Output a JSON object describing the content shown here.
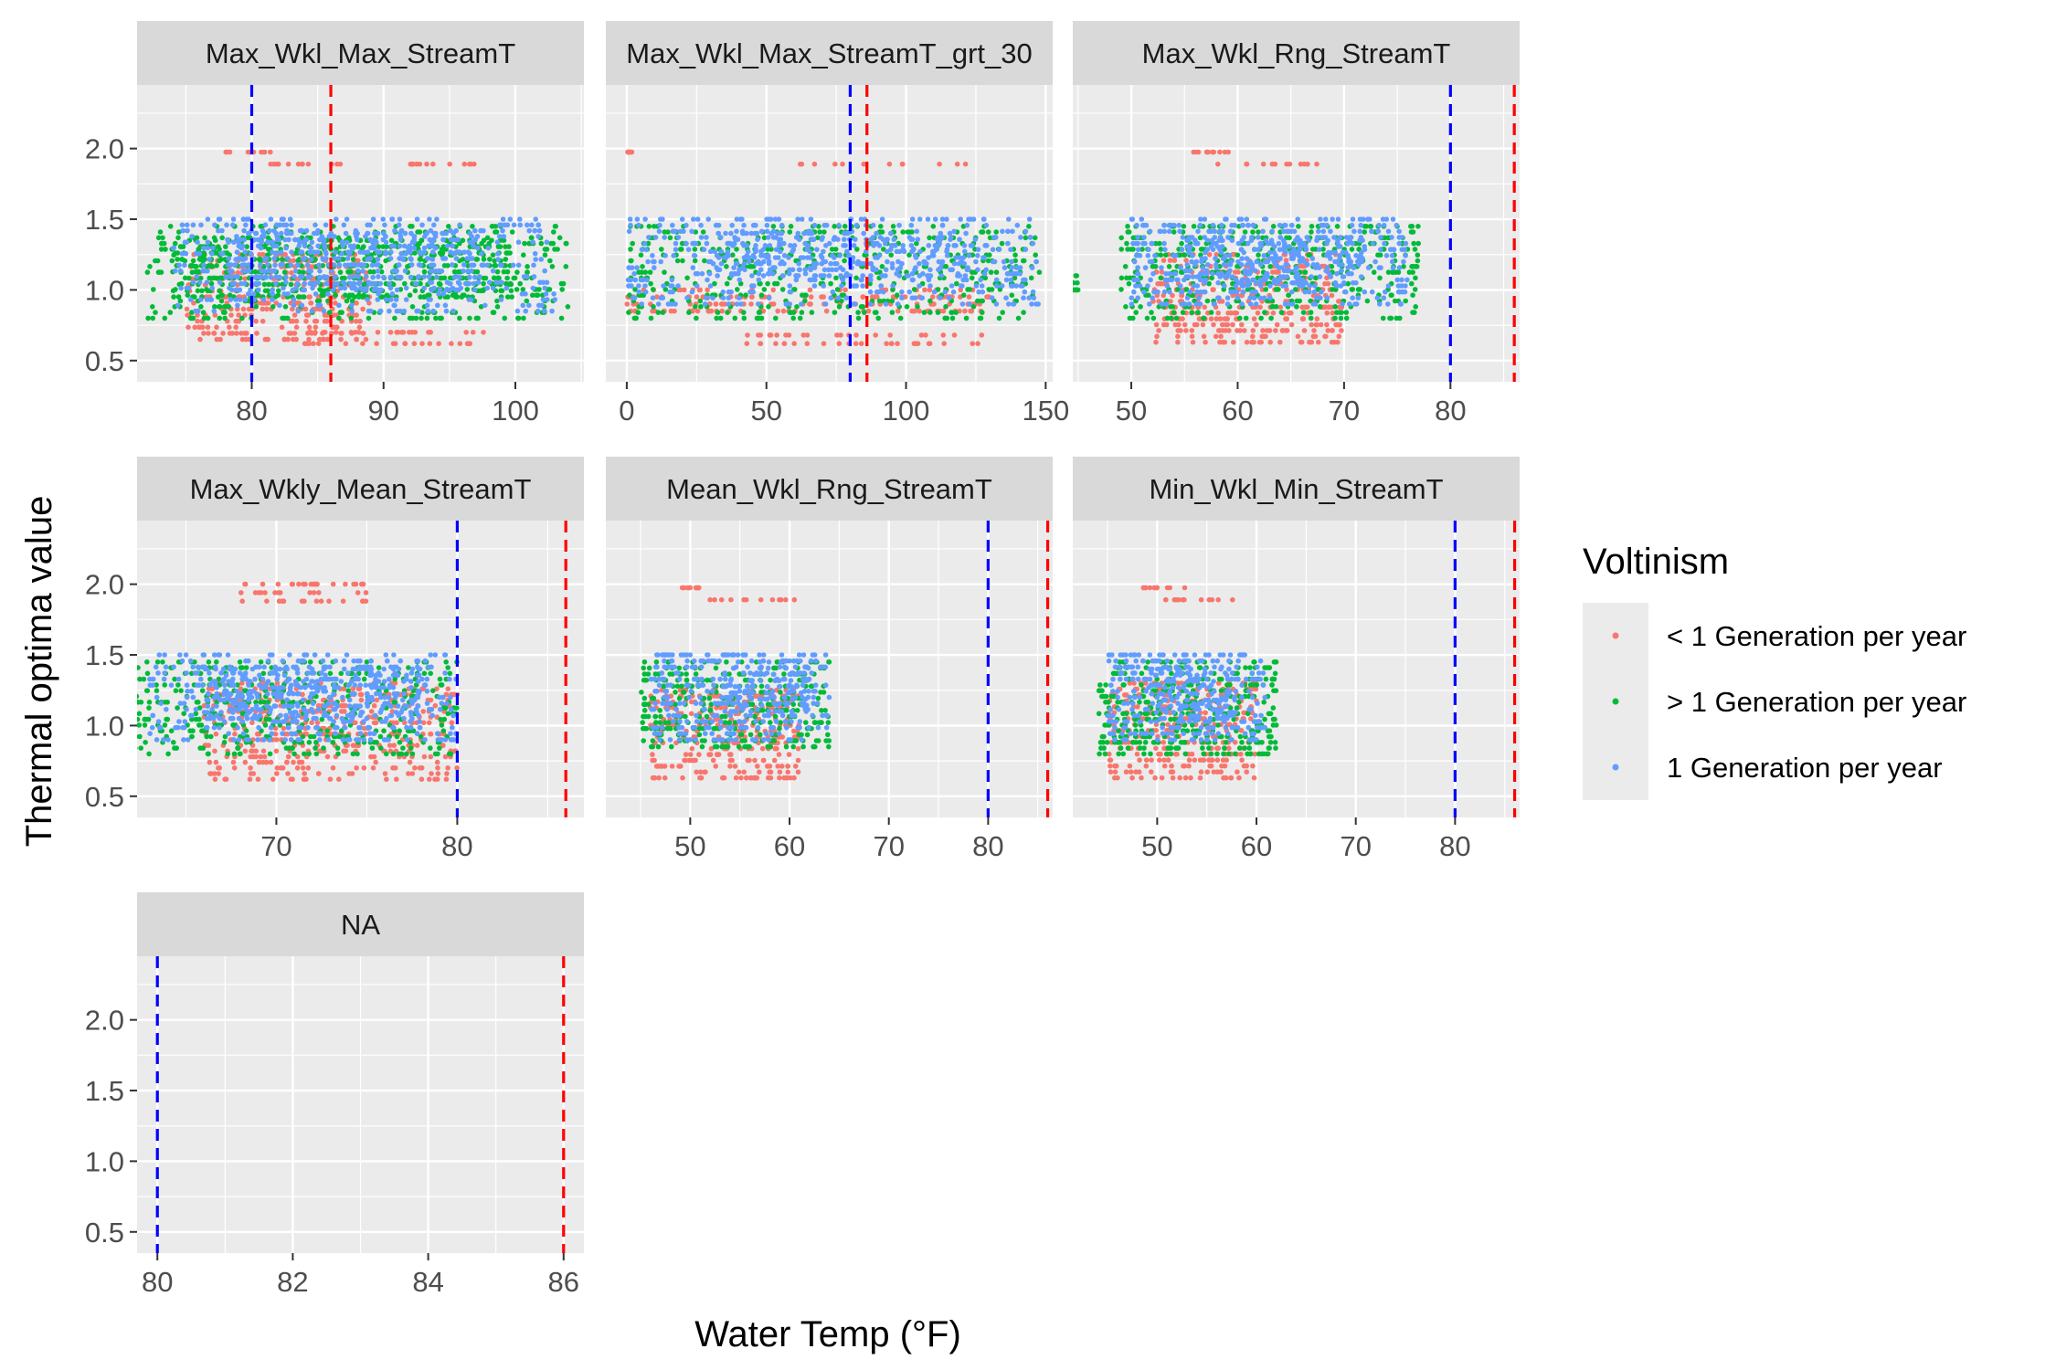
{
  "chart_data": {
    "type": "scatter",
    "xlabel": "Water Temp (°F)",
    "ylabel": "Thermal optima value",
    "ylim": [
      0.35,
      2.45
    ],
    "yticks": [
      0.5,
      1.0,
      1.5,
      2.0
    ],
    "ytick_labels": [
      "0.5",
      "1.0",
      "1.5",
      "2.0"
    ],
    "reference_lines": [
      {
        "color": "#0000ff",
        "x": 80,
        "style": "dashed"
      },
      {
        "color": "#ff0000",
        "x": 86,
        "style": "dashed"
      }
    ],
    "legend": {
      "title": "Voltinism",
      "position": "right",
      "entries": [
        {
          "label": "< 1 Generation per year",
          "color": "#F8766D"
        },
        {
          "label": "> 1 Generation per year",
          "color": "#00BA38"
        },
        {
          "label": "1 Generation per year",
          "color": "#619CFF"
        }
      ]
    },
    "panels": [
      {
        "title": "Max_Wkl_Max_StreamT",
        "xlim": [
          71.3,
          105.2
        ],
        "xticks": [
          80,
          90,
          100
        ],
        "xtick_labels": [
          "80",
          "90",
          "100"
        ],
        "series": [
          {
            "name": "< 1 Generation per year",
            "bands": [
              [
                75,
                89,
                0.65,
                1.25
              ],
              [
                84,
                98,
                0.62,
                0.7
              ],
              [
                78,
                82,
                1.95,
                2.0
              ],
              [
                81,
                87,
                1.88,
                1.9
              ],
              [
                91,
                97,
                1.88,
                1.9
              ]
            ]
          },
          {
            "name": "> 1 Generation per year",
            "bands": [
              [
                72,
                104,
                0.8,
                1.45
              ],
              [
                74,
                100,
                0.95,
                1.35
              ]
            ]
          },
          {
            "name": "1 Generation per year",
            "bands": [
              [
                74,
                103,
                0.85,
                1.5
              ],
              [
                78,
                97,
                1.0,
                1.4
              ]
            ]
          }
        ]
      },
      {
        "title": "Max_Wkl_Max_StreamT_grt_30",
        "xlim": [
          -7.5,
          152.5
        ],
        "xticks": [
          0,
          50,
          100,
          150
        ],
        "xtick_labels": [
          "0",
          "50",
          "100",
          "150"
        ],
        "series": [
          {
            "name": "< 1 Generation per year",
            "bands": [
              [
                0,
                130,
                0.85,
                1.0
              ],
              [
                40,
                130,
                0.62,
                0.68
              ],
              [
                60,
                130,
                1.88,
                1.9
              ],
              [
                0,
                2,
                1.95,
                2.0
              ]
            ]
          },
          {
            "name": "> 1 Generation per year",
            "bands": [
              [
                0,
                148,
                0.8,
                1.45
              ]
            ]
          },
          {
            "name": "1 Generation per year",
            "bands": [
              [
                0,
                148,
                0.9,
                1.5
              ],
              [
                30,
                130,
                1.1,
                1.4
              ]
            ]
          }
        ]
      },
      {
        "title": "Max_Wkl_Rng_StreamT",
        "xlim": [
          44.5,
          86.5
        ],
        "xticks": [
          50,
          60,
          70,
          80
        ],
        "xtick_labels": [
          "50",
          "60",
          "70",
          "80"
        ],
        "series": [
          {
            "name": "< 1 Generation per year",
            "bands": [
              [
                52,
                70,
                0.63,
                1.25
              ],
              [
                55,
                60,
                1.95,
                2.0
              ],
              [
                58,
                70,
                1.88,
                1.9
              ]
            ]
          },
          {
            "name": "> 1 Generation per year",
            "bands": [
              [
                49,
                77,
                0.8,
                1.45
              ],
              [
                44.5,
                45,
                1.0,
                1.1
              ]
            ]
          },
          {
            "name": "1 Generation per year",
            "bands": [
              [
                50,
                76,
                0.9,
                1.5
              ],
              [
                55,
                72,
                1.05,
                1.35
              ]
            ]
          }
        ]
      },
      {
        "title": "Max_Wkly_Mean_StreamT",
        "xlim": [
          62.3,
          87.0
        ],
        "xticks": [
          70,
          80
        ],
        "xtick_labels": [
          "70",
          "80"
        ],
        "series": [
          {
            "name": "< 1 Generation per year",
            "bands": [
              [
                66,
                80,
                0.62,
                1.3
              ],
              [
                68,
                75,
                1.88,
                2.0
              ]
            ]
          },
          {
            "name": "> 1 Generation per year",
            "bands": [
              [
                62,
                80,
                0.8,
                1.45
              ]
            ]
          },
          {
            "name": "1 Generation per year",
            "bands": [
              [
                63,
                80,
                0.9,
                1.5
              ],
              [
                66,
                78,
                1.05,
                1.4
              ]
            ]
          }
        ]
      },
      {
        "title": "Mean_Wkl_Rng_StreamT",
        "xlim": [
          41.5,
          86.5
        ],
        "xticks": [
          50,
          60,
          70,
          80
        ],
        "xtick_labels": [
          "50",
          "60",
          "70",
          "80"
        ],
        "series": [
          {
            "name": "< 1 Generation per year",
            "bands": [
              [
                46,
                61,
                0.63,
                1.25
              ],
              [
                49,
                51,
                1.95,
                2.0
              ],
              [
                52,
                61,
                1.88,
                1.9
              ]
            ]
          },
          {
            "name": "> 1 Generation per year",
            "bands": [
              [
                45,
                64,
                0.85,
                1.45
              ]
            ]
          },
          {
            "name": "1 Generation per year",
            "bands": [
              [
                46,
                64,
                0.9,
                1.5
              ],
              [
                53,
                62,
                1.1,
                1.45
              ]
            ]
          }
        ]
      },
      {
        "title": "Min_Wkl_Min_StreamT",
        "xlim": [
          41.5,
          86.5
        ],
        "xticks": [
          50,
          60,
          70,
          80
        ],
        "xtick_labels": [
          "50",
          "60",
          "70",
          "80"
        ],
        "series": [
          {
            "name": "< 1 Generation per year",
            "bands": [
              [
                45,
                60,
                0.63,
                1.3
              ],
              [
                48,
                53,
                1.95,
                2.0
              ],
              [
                50,
                58,
                1.88,
                1.9
              ]
            ]
          },
          {
            "name": "> 1 Generation per year",
            "bands": [
              [
                44,
                62,
                0.8,
                1.45
              ]
            ]
          },
          {
            "name": "1 Generation per year",
            "bands": [
              [
                45,
                61,
                0.9,
                1.5
              ],
              [
                49,
                58,
                1.05,
                1.4
              ]
            ]
          }
        ]
      },
      {
        "title": "NA",
        "xlim": [
          79.7,
          86.3
        ],
        "xticks": [
          80,
          82,
          84,
          86
        ],
        "xtick_labels": [
          "80",
          "82",
          "84",
          "86"
        ],
        "series": []
      }
    ]
  }
}
